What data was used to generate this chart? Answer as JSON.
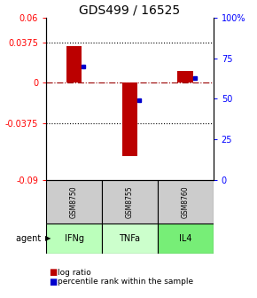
{
  "title": "GDS499 / 16525",
  "samples": [
    "GSM8750",
    "GSM8755",
    "GSM8760"
  ],
  "agents": [
    "IFNg",
    "TNFa",
    "IL4"
  ],
  "log_ratios": [
    0.034,
    -0.068,
    0.011
  ],
  "percentile_ranks": [
    0.7,
    0.49,
    0.63
  ],
  "ylim_left": [
    -0.09,
    0.06
  ],
  "ylim_right": [
    0.0,
    1.0
  ],
  "yticks_left": [
    -0.09,
    -0.0375,
    0,
    0.0375,
    0.06
  ],
  "yticks_right": [
    0.0,
    0.25,
    0.5,
    0.75,
    1.0
  ],
  "ytick_labels_left": [
    "-0.09",
    "-0.0375",
    "0",
    "0.0375",
    "0.06"
  ],
  "ytick_labels_right": [
    "0",
    "25",
    "50",
    "75",
    "100%"
  ],
  "bar_width": 0.28,
  "bar_color_red": "#bb0000",
  "bar_color_blue": "#0000cc",
  "agent_colors": [
    "#bbffbb",
    "#ccffcc",
    "#77ee77"
  ],
  "sample_bg": "#cccccc",
  "title_fontsize": 10,
  "tick_fontsize": 7,
  "legend_fontsize": 6.5
}
